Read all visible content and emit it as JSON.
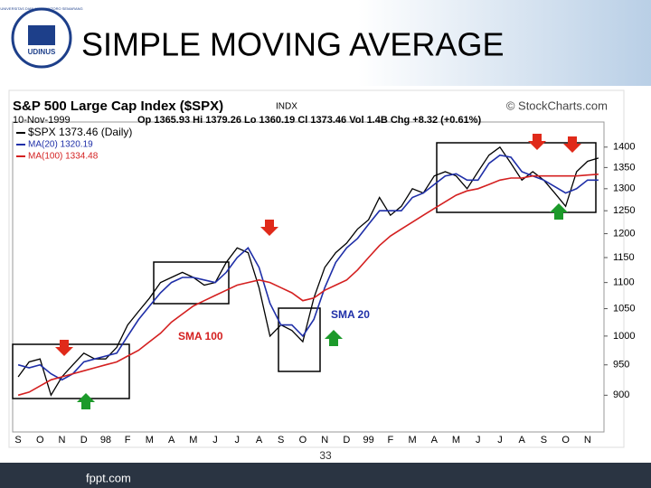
{
  "slide": {
    "title": "SIMPLE  MOVING AVERAGE",
    "logo": "UDINUS",
    "logo_ring": "UNIVERSITAS DIAN NUSWANTORO SEMARANG",
    "page_number": "33",
    "footer": "fppt.com"
  },
  "chart_data": {
    "type": "line",
    "title": "S&P 500 Large Cap Index ($SPX)",
    "exchange": "INDX",
    "source": "© StockCharts.com",
    "date": "10-Nov-1999",
    "quote": "Op 1365.93 Hi 1379.26 Lo 1360.19 Cl 1373.46 Vol 1.4B Chg +8.32 (+0.61%)",
    "categories": [
      "S",
      null,
      "O",
      null,
      "N",
      null,
      "D",
      null,
      "98",
      null,
      "F",
      null,
      "M",
      null,
      "A",
      null,
      "M",
      null,
      "J",
      null,
      "J",
      null,
      "A",
      null,
      "S",
      null,
      "O",
      null,
      "N",
      null,
      "D",
      null,
      "99",
      null,
      "F",
      null,
      "M",
      null,
      "A",
      null,
      "M",
      null,
      "J",
      null,
      "J",
      null,
      "A",
      null,
      "S",
      null,
      "O",
      null,
      "N",
      null
    ],
    "series": [
      {
        "name": "$SPX 1373.46 (Daily)",
        "color": "#000000",
        "values": [
          930,
          955,
          960,
          900,
          930,
          950,
          970,
          960,
          960,
          980,
          1020,
          1045,
          1070,
          1100,
          1110,
          1120,
          1110,
          1095,
          1100,
          1140,
          1170,
          1160,
          1090,
          1000,
          1020,
          1010,
          990,
          1070,
          1130,
          1160,
          1180,
          1210,
          1230,
          1280,
          1240,
          1260,
          1300,
          1290,
          1330,
          1340,
          1330,
          1300,
          1340,
          1380,
          1400,
          1360,
          1320,
          1340,
          1320,
          1290,
          1260,
          1340,
          1365,
          1373
        ]
      },
      {
        "name": "MA(20) 1320.19",
        "color": "#1f2fa8",
        "values": [
          950,
          945,
          950,
          935,
          925,
          935,
          955,
          960,
          965,
          970,
          1000,
          1030,
          1055,
          1080,
          1100,
          1110,
          1110,
          1105,
          1100,
          1120,
          1150,
          1170,
          1130,
          1060,
          1020,
          1020,
          1000,
          1030,
          1090,
          1140,
          1170,
          1190,
          1220,
          1250,
          1250,
          1250,
          1280,
          1290,
          1310,
          1330,
          1335,
          1320,
          1320,
          1360,
          1380,
          1375,
          1340,
          1330,
          1320,
          1305,
          1290,
          1300,
          1320,
          1320
        ]
      },
      {
        "name": "MA(100) 1334.48",
        "color": "#d42020",
        "values": [
          900,
          905,
          915,
          925,
          930,
          935,
          940,
          945,
          950,
          955,
          965,
          975,
          990,
          1005,
          1025,
          1040,
          1055,
          1065,
          1075,
          1085,
          1095,
          1100,
          1105,
          1100,
          1090,
          1080,
          1065,
          1070,
          1085,
          1095,
          1105,
          1125,
          1150,
          1175,
          1195,
          1210,
          1225,
          1240,
          1255,
          1270,
          1285,
          1295,
          1300,
          1310,
          1320,
          1325,
          1325,
          1330,
          1330,
          1330,
          1330,
          1330,
          1332,
          1334
        ]
      }
    ],
    "annotations": [
      "SMA 100",
      "SMA 20"
    ],
    "ylim": [
      843,
      1464
    ],
    "yticks": [
      900,
      950,
      1000,
      1050,
      1100,
      1150,
      1200,
      1250,
      1300,
      1350,
      1400
    ],
    "log_scale": true,
    "grid": false
  }
}
